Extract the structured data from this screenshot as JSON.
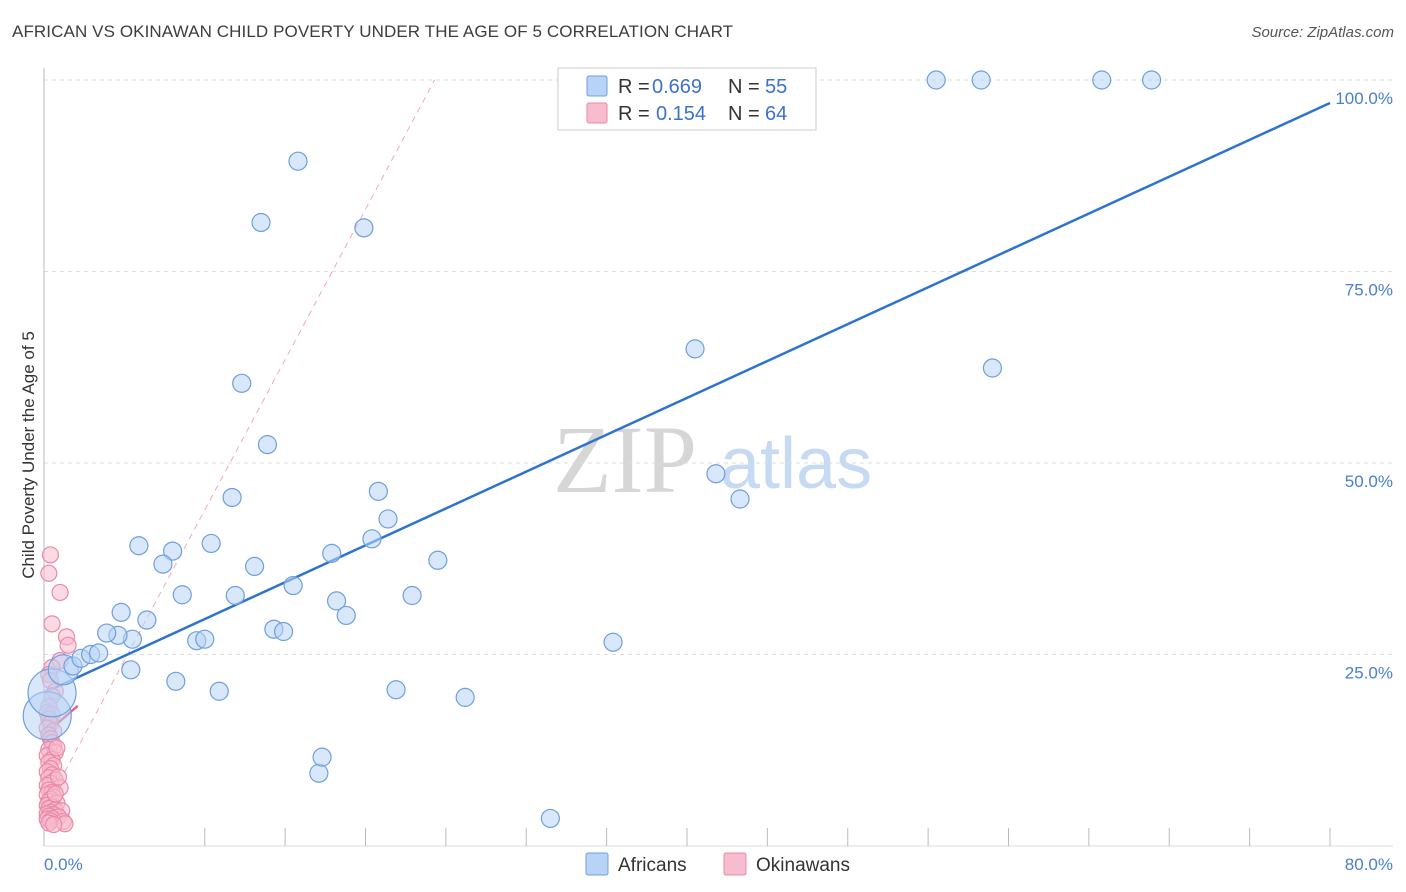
{
  "title": "AFRICAN VS OKINAWAN CHILD POVERTY UNDER THE AGE OF 5 CORRELATION CHART",
  "source": "Source: ZipAtlas.com",
  "watermark": {
    "zip": "ZIP",
    "atlas": "atlas"
  },
  "colors": {
    "africans_fill": "#b8d3f5",
    "africans_stroke": "#6f9fdc",
    "africans_line": "#2f74cc",
    "okinawans_fill": "#f7bccd",
    "okinawans_stroke": "#e98aa8",
    "okinawans_line": "#e8608c",
    "grid": "#dcdcdc",
    "tick_text": "#4a7fd0"
  },
  "legend": {
    "rows": [
      {
        "r_label": "R =",
        "r_value": "0.669",
        "n_label": "N =",
        "n_value": "55"
      },
      {
        "r_label": "R =",
        "r_value": "0.154",
        "n_label": "N =",
        "n_value": "64"
      }
    ]
  },
  "bottom_legend": {
    "africans": "Africans",
    "okinawans": "Okinawans"
  },
  "chart_data": {
    "type": "scatter",
    "title": "AFRICAN VS OKINAWAN CHILD POVERTY UNDER THE AGE OF 5 CORRELATION CHART",
    "xlabel": "",
    "ylabel": "Child Poverty Under the Age of 5",
    "xlim": [
      0,
      80
    ],
    "ylim": [
      0,
      100
    ],
    "x_tick_labels": {
      "min": "0.0%",
      "max": "80.0%"
    },
    "y_ticks": [
      {
        "value": 25,
        "label": "25.0%"
      },
      {
        "value": 50,
        "label": "50.0%"
      },
      {
        "value": 75,
        "label": "75.0%"
      },
      {
        "value": 100,
        "label": "100.0%"
      }
    ],
    "series": [
      {
        "name": "Africans",
        "r": 0.669,
        "n": 55,
        "trend": {
          "x": [
            0,
            80
          ],
          "y": [
            20.0,
            97.0
          ],
          "style": "solid"
        },
        "points": [
          [
            0.2,
            17.0,
            2.2
          ],
          [
            0.5,
            20.0,
            1.6
          ],
          [
            1.2,
            23.0,
            1.0
          ],
          [
            1.8,
            23.5,
            0.6
          ],
          [
            2.3,
            24.5,
            0.6
          ],
          [
            2.9,
            25.0,
            0.6
          ],
          [
            3.4,
            25.2,
            0.6
          ],
          [
            5.5,
            27.0,
            0.6
          ],
          [
            5.4,
            23.0,
            0.6
          ],
          [
            4.6,
            27.5,
            0.6
          ],
          [
            3.9,
            27.8,
            0.6
          ],
          [
            4.8,
            30.5,
            0.6
          ],
          [
            6.4,
            29.5,
            0.6
          ],
          [
            5.9,
            39.2,
            0.6
          ],
          [
            8.0,
            38.5,
            0.6
          ],
          [
            7.4,
            36.8,
            0.6
          ],
          [
            8.6,
            32.8,
            0.6
          ],
          [
            9.5,
            26.8,
            0.6
          ],
          [
            10.0,
            27.0,
            0.6
          ],
          [
            10.4,
            39.5,
            0.6
          ],
          [
            8.2,
            21.5,
            0.6
          ],
          [
            10.9,
            20.2,
            0.6
          ],
          [
            11.7,
            45.5,
            0.6
          ],
          [
            11.9,
            32.7,
            0.6
          ],
          [
            12.3,
            60.4,
            0.6
          ],
          [
            13.1,
            36.5,
            0.6
          ],
          [
            13.5,
            81.4,
            0.6
          ],
          [
            13.9,
            52.4,
            0.6
          ],
          [
            14.3,
            28.3,
            0.6
          ],
          [
            14.9,
            28.0,
            0.6
          ],
          [
            15.5,
            34.0,
            0.6
          ],
          [
            15.8,
            89.4,
            0.6
          ],
          [
            17.1,
            9.5,
            0.6
          ],
          [
            17.3,
            11.6,
            0.6
          ],
          [
            17.9,
            38.2,
            0.6
          ],
          [
            18.2,
            32.0,
            0.6
          ],
          [
            18.8,
            30.1,
            0.6
          ],
          [
            19.9,
            80.7,
            0.6
          ],
          [
            20.4,
            40.1,
            0.6
          ],
          [
            20.8,
            46.3,
            0.6
          ],
          [
            21.4,
            42.7,
            0.6
          ],
          [
            21.9,
            20.4,
            0.6
          ],
          [
            22.9,
            32.7,
            0.6
          ],
          [
            24.5,
            37.3,
            0.6
          ],
          [
            26.2,
            19.4,
            0.6
          ],
          [
            31.5,
            3.6,
            0.6
          ],
          [
            35.4,
            26.6,
            0.6
          ],
          [
            40.5,
            64.9,
            0.6
          ],
          [
            41.8,
            48.6,
            0.6
          ],
          [
            43.3,
            45.3,
            0.6
          ],
          [
            55.5,
            100.0,
            0.6
          ],
          [
            58.3,
            100.0,
            0.6
          ],
          [
            59.0,
            62.4,
            0.6
          ],
          [
            65.8,
            100.0,
            0.6
          ],
          [
            68.9,
            100.0,
            0.6
          ]
        ]
      },
      {
        "name": "Okinawans",
        "r": 0.154,
        "n": 64,
        "trend": {
          "x": [
            0,
            2.1
          ],
          "y": [
            14.5,
            18.3
          ],
          "style": "solid"
        },
        "extension": {
          "x": [
            0,
            24.3
          ],
          "y": [
            4.6,
            100.0
          ],
          "style": "dashed"
        },
        "points": [
          [
            0.4,
            38.0
          ],
          [
            0.3,
            35.6
          ],
          [
            1.0,
            33.1
          ],
          [
            0.5,
            29.0
          ],
          [
            1.4,
            27.3
          ],
          [
            1.5,
            26.2
          ],
          [
            1.0,
            24.2
          ],
          [
            0.5,
            23.3
          ],
          [
            0.3,
            22.4
          ],
          [
            0.4,
            21.6
          ],
          [
            0.7,
            20.2
          ],
          [
            0.5,
            19.6
          ],
          [
            0.3,
            18.2
          ],
          [
            0.2,
            17.4
          ],
          [
            0.5,
            17.2
          ],
          [
            0.3,
            16.6
          ],
          [
            0.4,
            16.0
          ],
          [
            0.2,
            15.4
          ],
          [
            0.6,
            15.0
          ],
          [
            0.3,
            14.5
          ],
          [
            0.4,
            14.0
          ],
          [
            0.5,
            13.5
          ],
          [
            0.6,
            13.0
          ],
          [
            0.3,
            12.6
          ],
          [
            0.7,
            12.2
          ],
          [
            0.2,
            11.8
          ],
          [
            0.5,
            11.3
          ],
          [
            0.3,
            10.9
          ],
          [
            0.6,
            10.5
          ],
          [
            0.4,
            10.1
          ],
          [
            0.2,
            9.7
          ],
          [
            0.5,
            9.3
          ],
          [
            0.3,
            8.9
          ],
          [
            0.7,
            8.6
          ],
          [
            0.4,
            8.2
          ],
          [
            0.2,
            7.9
          ],
          [
            1.0,
            7.6
          ],
          [
            0.3,
            7.3
          ],
          [
            0.5,
            7.0
          ],
          [
            0.2,
            6.7
          ],
          [
            0.6,
            6.4
          ],
          [
            0.4,
            6.1
          ],
          [
            0.3,
            5.8
          ],
          [
            0.8,
            5.6
          ],
          [
            0.2,
            5.3
          ],
          [
            0.5,
            5.1
          ],
          [
            0.3,
            4.9
          ],
          [
            0.7,
            4.7
          ],
          [
            1.1,
            4.6
          ],
          [
            0.4,
            4.4
          ],
          [
            0.2,
            4.2
          ],
          [
            0.6,
            4.1
          ],
          [
            0.3,
            3.9
          ],
          [
            0.9,
            3.8
          ],
          [
            0.5,
            3.6
          ],
          [
            0.2,
            3.5
          ],
          [
            0.4,
            3.3
          ],
          [
            1.2,
            3.2
          ],
          [
            0.3,
            3.0
          ],
          [
            1.3,
            2.9
          ],
          [
            0.6,
            2.8
          ],
          [
            0.8,
            12.8
          ],
          [
            0.9,
            9.0
          ],
          [
            0.7,
            6.8
          ]
        ]
      }
    ]
  }
}
